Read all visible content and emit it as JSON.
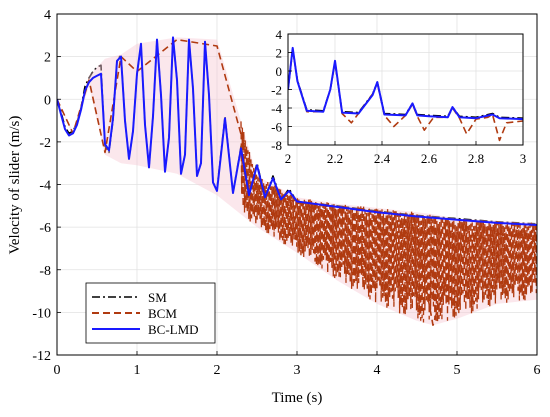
{
  "chart_data": [
    {
      "type": "line",
      "title": "",
      "xlabel": "Time (s)",
      "ylabel": "Velocity of slider (m/s)",
      "xlim": [
        0,
        6
      ],
      "ylim": [
        -12,
        4
      ],
      "xticks": [
        "0",
        "1",
        "2",
        "3",
        "4",
        "5",
        "6"
      ],
      "yticks": [
        "-12",
        "-10",
        "-8",
        "-6",
        "-4",
        "-2",
        "0",
        "2",
        "4"
      ],
      "grid": true,
      "legend_position": "bottom-left",
      "series": [
        {
          "name": "SM",
          "color": "#000000",
          "style": "dash-dot",
          "x": [
            0,
            0.05,
            0.1,
            0.15,
            0.2,
            0.25,
            0.3,
            0.35,
            0.4,
            0.45,
            0.5,
            0.55,
            0.6,
            0.65,
            0.7,
            0.75,
            0.8,
            0.85,
            0.9,
            0.95,
            1.0,
            1.05,
            1.1,
            1.15,
            1.2,
            1.25,
            1.3,
            1.35,
            1.4,
            1.45,
            1.5,
            1.55,
            1.6,
            1.65,
            1.7,
            1.75,
            1.8,
            1.85,
            1.9,
            1.95,
            2.0,
            2.1,
            2.2,
            2.3,
            2.4,
            2.5,
            2.6,
            2.7,
            2.8,
            2.9,
            3.0,
            3.5,
            4.0,
            4.5,
            5.0,
            5.5,
            6.0
          ],
          "y": [
            0,
            -0.6,
            -1.3,
            -1.6,
            -1.5,
            -1.1,
            -0.4,
            0.6,
            1.0,
            1.3,
            1.5,
            1.6,
            -2.2,
            -2.5,
            -1.0,
            1.8,
            2.1,
            -1.0,
            -2.8,
            -1.5,
            1.2,
            2.5,
            -1.2,
            -3.2,
            -0.8,
            2.8,
            0.2,
            -3.4,
            -1.8,
            2.9,
            0.9,
            -3.5,
            -2.6,
            2.8,
            0.5,
            -3.6,
            -3.0,
            2.7,
            0.2,
            -3.9,
            -4.2,
            -0.8,
            -4.4,
            -2.2,
            -4.5,
            -3.0,
            -4.6,
            -3.6,
            -4.7,
            -4.2,
            -4.8,
            -5.0,
            -5.25,
            -5.45,
            -5.6,
            -5.75,
            -5.85
          ]
        },
        {
          "name": "BCM",
          "color": "#b03a10",
          "style": "dashed",
          "x": [
            0,
            0.2,
            0.4,
            0.6,
            0.8,
            1.0,
            1.5,
            2.0,
            2.5,
            3.0,
            3.5,
            4.0,
            4.5,
            4.7,
            5.0,
            5.5,
            6.0
          ],
          "y": [
            0,
            -1.6,
            0.9,
            -2.5,
            2.0,
            1.3,
            2.8,
            2.5,
            -4.4,
            -4.8,
            -5.6,
            -6.3,
            -6.5,
            -10.6,
            -6.8,
            -6.3,
            -6.6
          ],
          "envelope_min": [
            0,
            -1.7,
            0.6,
            -2.6,
            -3.0,
            -3.1,
            -3.5,
            -4.5,
            -6.0,
            -7.2,
            -8.5,
            -9.6,
            -10.4,
            -10.6,
            -10.3,
            -9.6,
            -9.4
          ],
          "envelope_max": [
            0,
            -1.5,
            1.1,
            1.9,
            2.1,
            2.6,
            2.9,
            2.8,
            -3.6,
            -4.6,
            -4.9,
            -5.1,
            -5.3,
            -5.4,
            -5.6,
            -5.7,
            -5.8
          ]
        },
        {
          "name": "BC-LMD",
          "color": "#1a1aff",
          "style": "solid",
          "x": [
            0,
            0.05,
            0.1,
            0.15,
            0.2,
            0.25,
            0.3,
            0.35,
            0.4,
            0.45,
            0.5,
            0.55,
            0.6,
            0.65,
            0.7,
            0.75,
            0.8,
            0.85,
            0.9,
            0.95,
            1.0,
            1.05,
            1.1,
            1.15,
            1.2,
            1.25,
            1.3,
            1.35,
            1.4,
            1.45,
            1.5,
            1.55,
            1.6,
            1.65,
            1.7,
            1.75,
            1.8,
            1.85,
            1.9,
            1.95,
            2.0,
            2.1,
            2.2,
            2.3,
            2.4,
            2.5,
            2.6,
            2.7,
            2.8,
            2.9,
            3.0,
            3.5,
            4.0,
            4.5,
            5.0,
            5.5,
            6.0
          ],
          "y": [
            0,
            -0.7,
            -1.4,
            -1.7,
            -1.6,
            -1.2,
            -0.5,
            0.4,
            0.8,
            1.0,
            1.1,
            1.2,
            -2.1,
            -2.4,
            -0.9,
            1.8,
            2.0,
            -1.0,
            -2.8,
            -1.5,
            1.2,
            2.6,
            -1.2,
            -3.2,
            -0.8,
            2.8,
            0.2,
            -3.4,
            -1.8,
            2.9,
            0.9,
            -3.5,
            -2.6,
            2.8,
            0.5,
            -3.6,
            -3.0,
            2.7,
            0.2,
            -3.9,
            -4.3,
            -0.9,
            -4.4,
            -2.3,
            -4.5,
            -3.1,
            -4.6,
            -3.7,
            -4.7,
            -4.3,
            -4.8,
            -5.05,
            -5.3,
            -5.5,
            -5.65,
            -5.8,
            -5.9
          ]
        }
      ]
    },
    {
      "type": "line",
      "title": "",
      "xlabel": "",
      "ylabel": "",
      "xlim": [
        2,
        3
      ],
      "ylim": [
        -8,
        4
      ],
      "xticks": [
        "2",
        "2.2",
        "2.4",
        "2.6",
        "2.8",
        "3"
      ],
      "yticks": [
        "-8",
        "-6",
        "-4",
        "-2",
        "0",
        "2",
        "4"
      ],
      "grid": true,
      "series": [
        {
          "name": "SM",
          "color": "#000000",
          "style": "dash-dot",
          "x": [
            2.0,
            2.02,
            2.04,
            2.08,
            2.15,
            2.18,
            2.2,
            2.23,
            2.3,
            2.36,
            2.38,
            2.41,
            2.5,
            2.53,
            2.55,
            2.6,
            2.68,
            2.7,
            2.73,
            2.8,
            2.87,
            2.9,
            3.0
          ],
          "y": [
            -2.0,
            2.4,
            -1.0,
            -4.2,
            -4.3,
            -2.0,
            1.0,
            -4.4,
            -4.5,
            -2.5,
            -1.2,
            -4.6,
            -4.7,
            -3.5,
            -4.7,
            -4.8,
            -4.9,
            -3.9,
            -4.9,
            -5.0,
            -4.6,
            -5.0,
            -5.1
          ]
        },
        {
          "name": "BCM",
          "color": "#b03a10",
          "style": "dashed",
          "x": [
            2.0,
            2.02,
            2.04,
            2.08,
            2.15,
            2.18,
            2.2,
            2.23,
            2.27,
            2.3,
            2.36,
            2.38,
            2.41,
            2.45,
            2.5,
            2.53,
            2.55,
            2.58,
            2.62,
            2.68,
            2.7,
            2.73,
            2.76,
            2.8,
            2.85,
            2.87,
            2.9,
            2.93,
            3.0
          ],
          "y": [
            -2.0,
            2.3,
            -1.0,
            -4.4,
            -4.4,
            -2.0,
            0.9,
            -4.6,
            -5.6,
            -4.6,
            -2.5,
            -1.3,
            -4.8,
            -6.0,
            -4.8,
            -3.6,
            -4.9,
            -6.4,
            -5.0,
            -5.0,
            -4.0,
            -5.1,
            -6.8,
            -5.2,
            -5.0,
            -4.7,
            -7.5,
            -5.6,
            -5.4
          ]
        },
        {
          "name": "BC-LMD",
          "color": "#1a1aff",
          "style": "solid",
          "x": [
            2.0,
            2.02,
            2.04,
            2.08,
            2.15,
            2.18,
            2.2,
            2.23,
            2.3,
            2.36,
            2.38,
            2.41,
            2.5,
            2.53,
            2.55,
            2.6,
            2.68,
            2.7,
            2.73,
            2.8,
            2.87,
            2.9,
            3.0
          ],
          "y": [
            -2.0,
            2.5,
            -1.1,
            -4.3,
            -4.4,
            -2.0,
            1.1,
            -4.5,
            -4.6,
            -2.6,
            -1.2,
            -4.7,
            -4.8,
            -3.5,
            -4.8,
            -4.9,
            -5.0,
            -3.9,
            -5.0,
            -5.1,
            -4.7,
            -5.1,
            -5.2
          ]
        }
      ]
    }
  ]
}
